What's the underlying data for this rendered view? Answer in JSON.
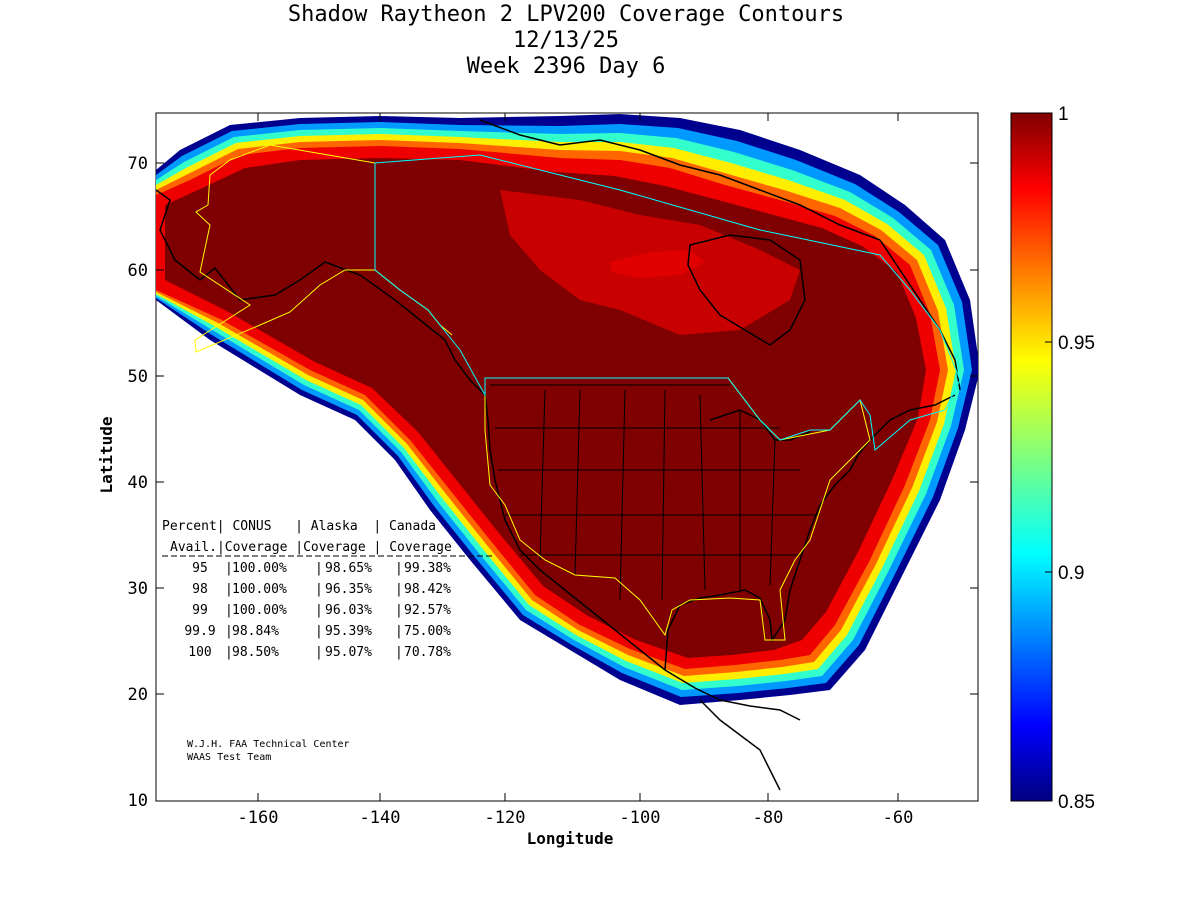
{
  "title": {
    "line1": "Shadow Raytheon 2 LPV200 Coverage Contours",
    "line2": "12/13/25",
    "line3": "Week 2396 Day 6"
  },
  "axes": {
    "xlabel": "Longitude",
    "ylabel": "Latitude",
    "x_range": [
      -175,
      -50
    ],
    "y_range": [
      10,
      75
    ],
    "x_ticks": [
      "-160",
      "-140",
      "-120",
      "-100",
      "-80",
      "-60"
    ],
    "y_ticks": [
      "70",
      "60",
      "50",
      "40",
      "30",
      "20",
      "10"
    ]
  },
  "colorbar": {
    "min": 0.85,
    "max": 1,
    "colormap": "jet",
    "ticks": [
      "1",
      "0.95",
      "0.9",
      "0.85"
    ]
  },
  "stats_table": {
    "header1": [
      "Percent",
      "CONUS",
      "Alaska",
      "Canada"
    ],
    "header2": [
      "Avail.",
      "Coverage",
      "Coverage",
      "Coverage"
    ],
    "rows": [
      [
        "95",
        "100.00%",
        "98.65%",
        "99.38%"
      ],
      [
        "98",
        "100.00%",
        "96.35%",
        "98.42%"
      ],
      [
        "99",
        "100.00%",
        "96.03%",
        "92.57%"
      ],
      [
        "99.9",
        "98.84%",
        "95.39%",
        "75.00%"
      ],
      [
        "100",
        "98.50%",
        "95.07%",
        "70.78%"
      ]
    ]
  },
  "credit": {
    "line1": "W.J.H. FAA Technical Center",
    "line2": "WAAS Test Team"
  },
  "colors": {
    "full_coverage": "#7f0000",
    "boundary_usa": "#ffff00",
    "boundary_canada": "#00ffff",
    "coastline": "#000000"
  }
}
